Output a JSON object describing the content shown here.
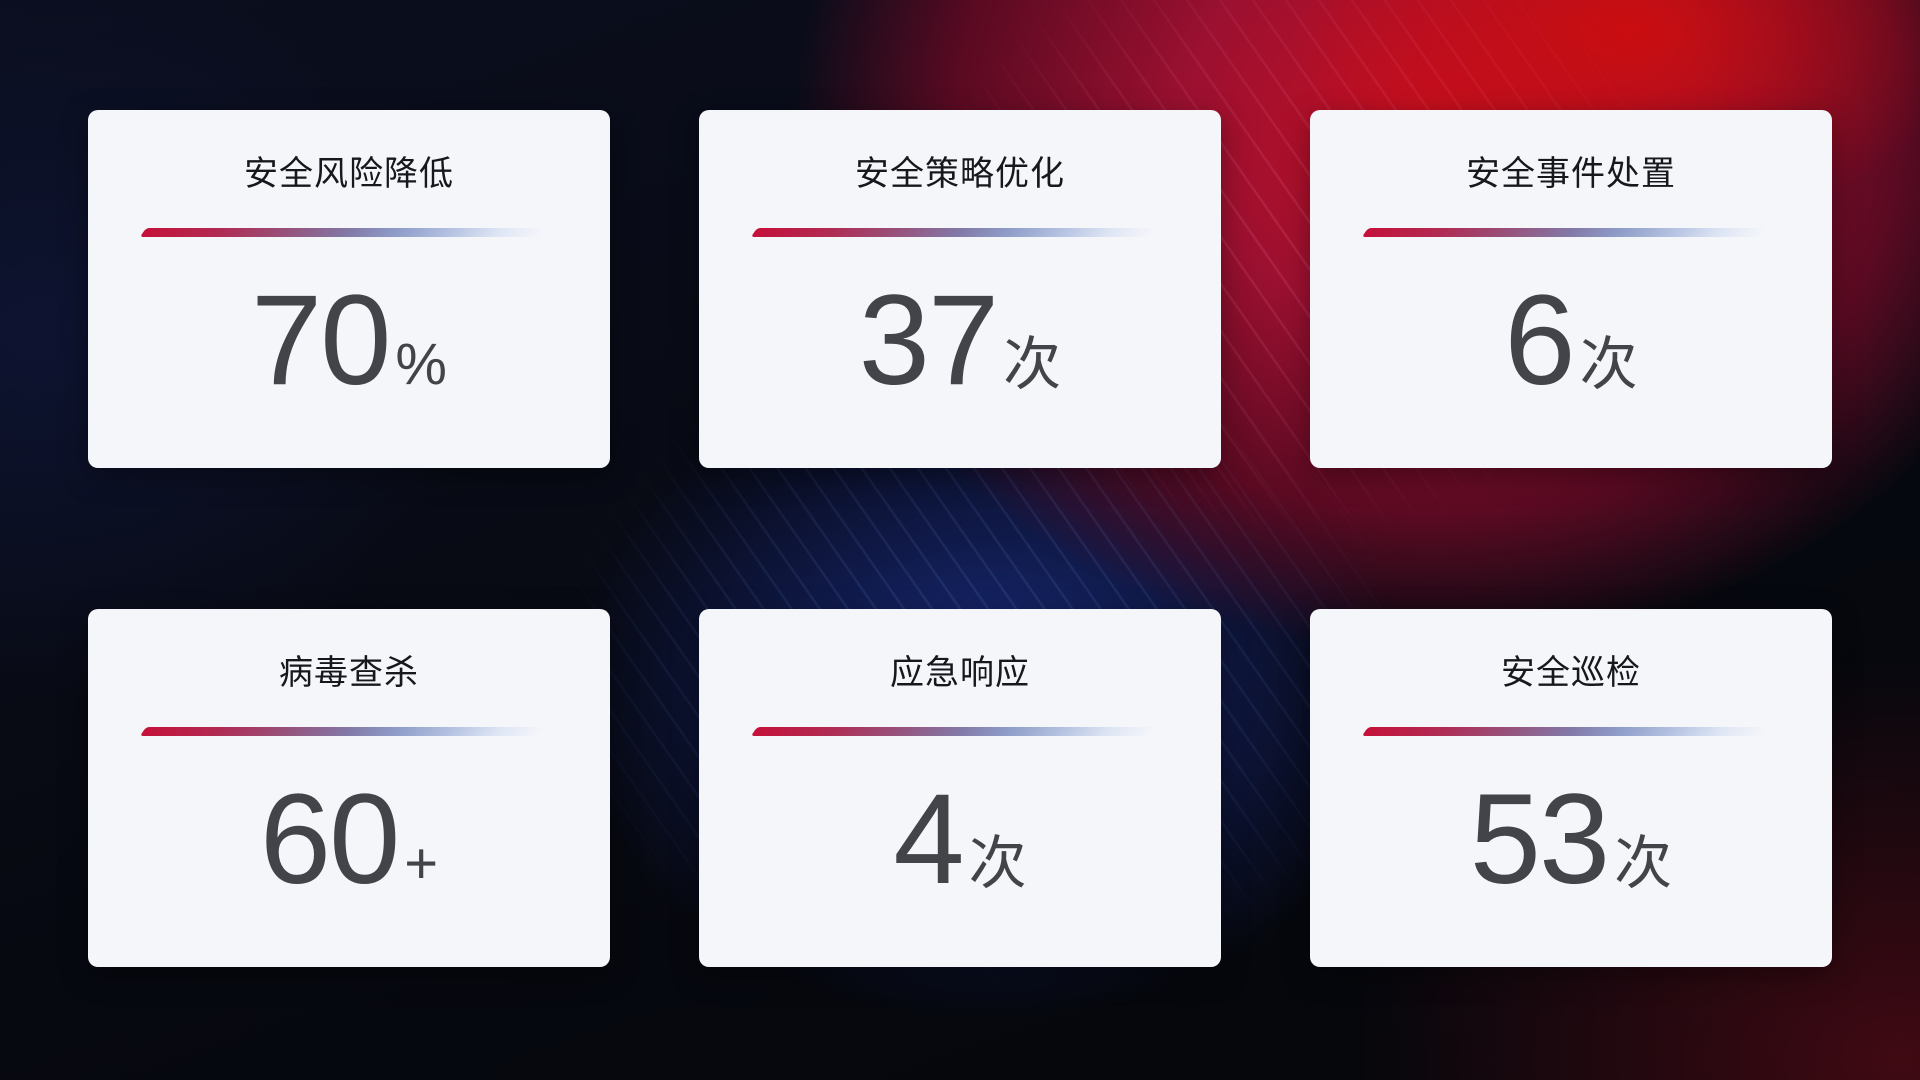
{
  "dashboard": {
    "colors": {
      "accent_red": "#c5113a",
      "divider_light_blue": "#b6c3e2",
      "card_background": "#f5f6fa",
      "title_color": "#16181d",
      "value_color": "#42444a",
      "background_red_glow": "#c30f22",
      "background_blue_glow": "#1a2e87",
      "background_base": "#070911"
    },
    "cards": [
      {
        "label": "安全风险降低",
        "value": "70",
        "unit": "%"
      },
      {
        "label": "安全策略优化",
        "value": "37",
        "unit": "次"
      },
      {
        "label": "安全事件处置",
        "value": "6",
        "unit": "次"
      },
      {
        "label": "病毒查杀",
        "value": "60",
        "unit": "+"
      },
      {
        "label": "应急响应",
        "value": "4",
        "unit": "次"
      },
      {
        "label": "安全巡检",
        "value": "53",
        "unit": "次"
      }
    ]
  }
}
